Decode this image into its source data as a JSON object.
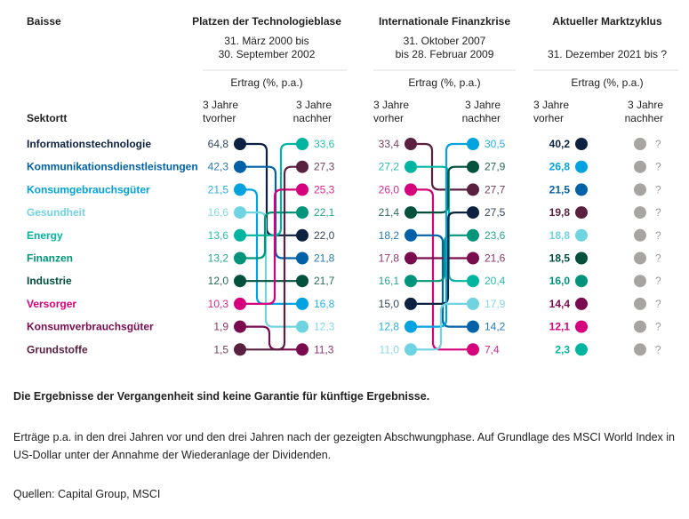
{
  "chart_data": {
    "type": "slope",
    "row_header": "Baisse",
    "sector_header": "Sektortt",
    "sectors": [
      {
        "name": "Informationstechnologie",
        "color": "#0d2240"
      },
      {
        "name": "Kommunikationsdienstleistungen",
        "color": "#0061a8"
      },
      {
        "name": "Konsumgebrauchsgüter",
        "color": "#00a3e0"
      },
      {
        "name": "Gesundheit",
        "color": "#70d3e0"
      },
      {
        "name": "Energy",
        "color": "#00b5a0"
      },
      {
        "name": "Finanzen",
        "color": "#00957a"
      },
      {
        "name": "Industrie",
        "color": "#00503c"
      },
      {
        "name": "Versorger",
        "color": "#d6007d"
      },
      {
        "name": "Konsumverbrauchsgüter",
        "color": "#7a0b4f"
      },
      {
        "name": "Grundstoffe",
        "color": "#5a2040"
      }
    ],
    "periods": [
      {
        "title": "Platzen der Technologieblase",
        "dates": [
          "31. März 2000 bis",
          "30. September 2002"
        ],
        "unit": "Ertrag (%, p.a.)",
        "before_label": [
          "3 Jahre",
          "tvorher"
        ],
        "after_label": [
          "3 Jahre",
          "nachher"
        ],
        "before": [
          {
            "sector": "Informationstechnologie",
            "value": "64,8"
          },
          {
            "sector": "Kommunikationsdienstleistungen",
            "value": "42,3"
          },
          {
            "sector": "Konsumgebrauchsgüter",
            "value": "21,5"
          },
          {
            "sector": "Gesundheit",
            "value": "16,6"
          },
          {
            "sector": "Energy",
            "value": "13,6"
          },
          {
            "sector": "Finanzen",
            "value": "13,2"
          },
          {
            "sector": "Industrie",
            "value": "12,0"
          },
          {
            "sector": "Versorger",
            "value": "10,3"
          },
          {
            "sector": "Konsumverbrauchsgüter",
            "value": "1,9"
          },
          {
            "sector": "Grundstoffe",
            "value": "1,5"
          }
        ],
        "after": [
          {
            "sector": "Energy",
            "value": "33,6"
          },
          {
            "sector": "Grundstoffe",
            "value": "27,3"
          },
          {
            "sector": "Versorger",
            "value": "25,3"
          },
          {
            "sector": "Finanzen",
            "value": "22,1"
          },
          {
            "sector": "Informationstechnologie",
            "value": "22,0"
          },
          {
            "sector": "Kommunikationsdienstleistungen",
            "value": "21,8"
          },
          {
            "sector": "Industrie",
            "value": "21,7"
          },
          {
            "sector": "Konsumgebrauchsgüter",
            "value": "16,8"
          },
          {
            "sector": "Gesundheit",
            "value": "12,3"
          },
          {
            "sector": "Konsumverbrauchsgüter",
            "value": "11,3"
          }
        ]
      },
      {
        "title": "Internationale Finanzkrise",
        "dates": [
          "31. Oktober 2007",
          "bis 28. Februar 2009"
        ],
        "unit": "Ertrag (%, p.a.)",
        "before_label": [
          "3 Jahre",
          "vorher"
        ],
        "after_label": [
          "3 Jahre",
          "nachher"
        ],
        "before": [
          {
            "sector": "Grundstoffe",
            "value": "33,4"
          },
          {
            "sector": "Energy",
            "value": "27,2"
          },
          {
            "sector": "Versorger",
            "value": "26,0"
          },
          {
            "sector": "Industrie",
            "value": "21,4"
          },
          {
            "sector": "Kommunikationsdienstleistungen",
            "value": "18,2"
          },
          {
            "sector": "Konsumverbrauchsgüter",
            "value": "17,8"
          },
          {
            "sector": "Finanzen",
            "value": "16,1"
          },
          {
            "sector": "Informationstechnologie",
            "value": "15,0"
          },
          {
            "sector": "Konsumgebrauchsgüter",
            "value": "12,8"
          },
          {
            "sector": "Gesundheit",
            "value": "11,0"
          }
        ],
        "after": [
          {
            "sector": "Konsumgebrauchsgüter",
            "value": "30,5"
          },
          {
            "sector": "Industrie",
            "value": "27,9"
          },
          {
            "sector": "Grundstoffe",
            "value": "27,7"
          },
          {
            "sector": "Informationstechnologie",
            "value": "27,5"
          },
          {
            "sector": "Finanzen",
            "value": "23,6"
          },
          {
            "sector": "Konsumverbrauchsgüter",
            "value": "21,6"
          },
          {
            "sector": "Energy",
            "value": "20,4"
          },
          {
            "sector": "Gesundheit",
            "value": "17,9"
          },
          {
            "sector": "Kommunikationsdienstleistungen",
            "value": "14,2"
          },
          {
            "sector": "Versorger",
            "value": "7,4"
          }
        ]
      },
      {
        "title": "Aktueller Marktzyklus",
        "dates": [
          "",
          "31. Dezember 2021 bis ?"
        ],
        "unit": "Ertrag (%, p.a.)",
        "before_label": [
          "3 Jahre",
          "vorher"
        ],
        "after_label": [
          "3 Jahre",
          "nachher"
        ],
        "before": [
          {
            "sector": "Informationstechnologie",
            "value": "40,2"
          },
          {
            "sector": "Konsumgebrauchsgüter",
            "value": "26,8"
          },
          {
            "sector": "Kommunikationsdienstleistungen",
            "value": "21,5"
          },
          {
            "sector": "Grundstoffe",
            "value": "19,8"
          },
          {
            "sector": "Gesundheit",
            "value": "18,8"
          },
          {
            "sector": "Industrie",
            "value": "18,5"
          },
          {
            "sector": "Finanzen",
            "value": "16,0"
          },
          {
            "sector": "Konsumverbrauchsgüter",
            "value": "14,4"
          },
          {
            "sector": "Versorger",
            "value": "12,1"
          },
          {
            "sector": "Energy",
            "value": "2,3"
          }
        ],
        "after_unknown": "?",
        "unknown_color": "#a7a4a2"
      }
    ]
  },
  "footer": {
    "disclaimer": "Die Ergebnisse der Vergangenheit sind keine Garantie für künftige Ergebnisse.",
    "note": "Erträge p.a. in den drei Jahren vor und den drei Jahren nach der gezeigten Abschwungphase. Auf Grundlage des MSCI World Index in US-Dollar unter der Annahme der Wiederanlage der Dividenden.",
    "sources": "Quellen: Capital Group, MSCI"
  }
}
